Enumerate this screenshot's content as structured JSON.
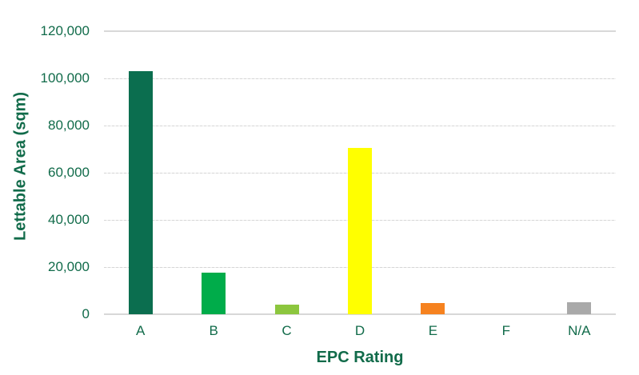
{
  "chart_data": {
    "type": "bar",
    "title": "",
    "categories": [
      "A",
      "B",
      "C",
      "D",
      "E",
      "F",
      "N/A"
    ],
    "values": [
      103000,
      17500,
      4000,
      70500,
      4800,
      0,
      5200
    ],
    "bar_colors": [
      "#0B6E4F",
      "#00AC4A",
      "#8CC63E",
      "#FFFF00",
      "#F6821F",
      "#CCCCCC",
      "#A9A9A9"
    ],
    "xlabel": "EPC Rating",
    "ylabel": "Lettable Area (sqm)",
    "ylim": [
      0,
      120000
    ],
    "ytick_interval": 20000,
    "ytick_labels": [
      "0",
      "20,000",
      "40,000",
      "60,000",
      "80,000",
      "100,000",
      "120,000"
    ],
    "grid": true,
    "legend": false
  },
  "colors": {
    "axis_text": "#116B4A",
    "gridline": "#D9D9D9",
    "background": "#FFFFFF"
  }
}
